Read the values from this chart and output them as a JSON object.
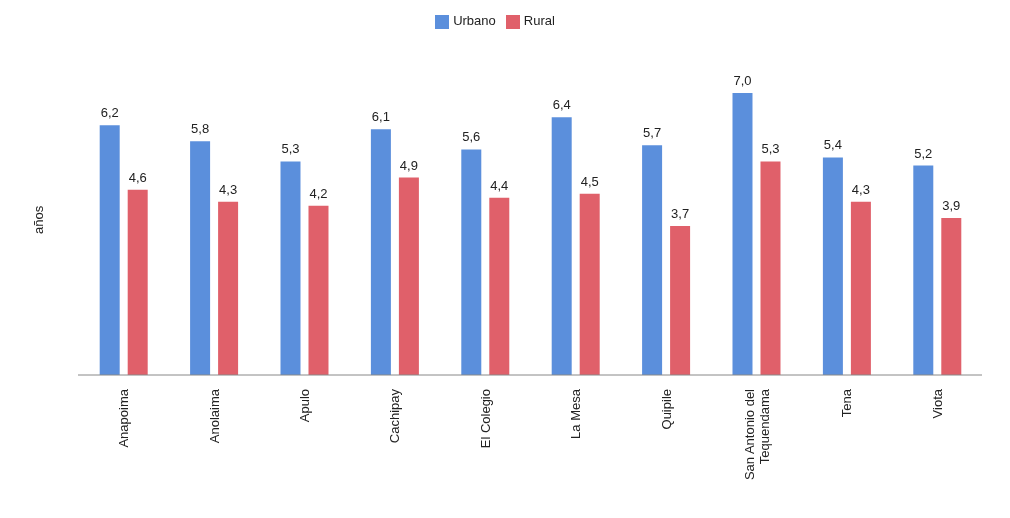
{
  "chart_data": {
    "type": "bar",
    "ylabel": "años",
    "legend": "top",
    "categories": [
      "Anapoima",
      "Anolaima",
      "Apulo",
      "Cachipay",
      "El Colegio",
      "La Mesa",
      "Quipile",
      "San Antonio del Tequendama",
      "Tena",
      "Viota"
    ],
    "series": [
      {
        "name": "Urbano",
        "color": "#5b8fdc",
        "values": [
          6.2,
          5.8,
          5.3,
          6.1,
          5.6,
          6.4,
          5.7,
          7.0,
          5.4,
          5.2
        ],
        "value_labels": [
          "6,2",
          "5,8",
          "5,3",
          "6,1",
          "5,6",
          "6,4",
          "5,7",
          "7,0",
          "5,4",
          "5,2"
        ]
      },
      {
        "name": "Rural",
        "color": "#e0606a",
        "values": [
          4.6,
          4.3,
          4.2,
          4.9,
          4.4,
          4.5,
          3.7,
          5.3,
          4.3,
          3.9
        ],
        "value_labels": [
          "4,6",
          "4,3",
          "4,2",
          "4,9",
          "4,4",
          "4,5",
          "3,7",
          "5,3",
          "4,3",
          "3,9"
        ]
      }
    ]
  }
}
